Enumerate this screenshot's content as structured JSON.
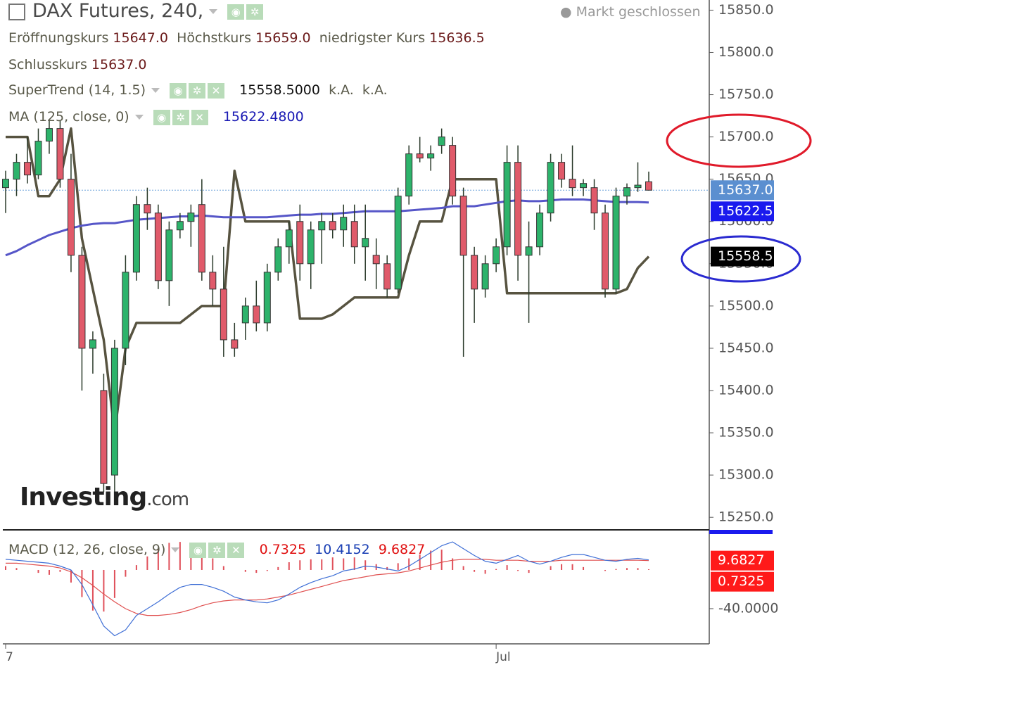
{
  "chart_data": [
    {
      "type": "candlestick",
      "title": "DAX Futures, 240,",
      "status": "Markt geschlossen",
      "ohlc": [
        {
          "label": "Eröffnungskurs",
          "value": "15647.0"
        },
        {
          "label": "Höchstkurs",
          "value": "15659.0"
        },
        {
          "label": "niedrigster Kurs",
          "value": "15636.5"
        },
        {
          "label": "Schlusskurs",
          "value": "15637.0"
        }
      ],
      "watermark": [
        "Investing",
        ".com"
      ],
      "categories": [
        "7",
        null,
        null,
        null,
        null,
        null,
        null,
        null,
        null,
        null,
        null,
        null,
        null,
        null,
        null,
        null,
        null,
        null,
        null,
        null,
        null,
        null,
        null,
        null,
        null,
        null,
        null,
        null,
        null,
        null,
        null,
        null,
        null,
        null,
        null,
        null,
        null,
        null,
        null,
        null,
        null,
        null,
        null,
        null,
        null,
        "Jul",
        null,
        null,
        null,
        null,
        null,
        null,
        null,
        null,
        null,
        null,
        null,
        null,
        null,
        null
      ],
      "up_color": "#2db36b",
      "down_color": "#e05a6a",
      "open": [
        15640,
        15650,
        15670,
        15655,
        15695,
        15710,
        15650,
        15560,
        15450,
        15400,
        15300,
        15450,
        15540,
        15620,
        15610,
        15530,
        15590,
        15600,
        15620,
        15540,
        15520,
        15460,
        15480,
        15500,
        15480,
        15540,
        15570,
        15600,
        15550,
        15590,
        15600,
        15590,
        15600,
        15570,
        15560,
        15550,
        15520,
        15630,
        15680,
        15675,
        15690,
        15690,
        15630,
        15560,
        15520,
        15550,
        15570,
        15670,
        15560,
        15570,
        15610,
        15670,
        15650,
        15640,
        15640,
        15610,
        15520,
        15630,
        15640,
        15647
      ],
      "high": [
        15660,
        15680,
        15700,
        15710,
        15720,
        15720,
        15680,
        15570,
        15470,
        15420,
        15460,
        15560,
        15630,
        15640,
        15620,
        15600,
        15610,
        15620,
        15650,
        15560,
        15570,
        15480,
        15510,
        15530,
        15550,
        15580,
        15600,
        15620,
        15600,
        15610,
        15610,
        15620,
        15620,
        15620,
        15580,
        15560,
        15640,
        15690,
        15700,
        15690,
        15710,
        15700,
        15640,
        15570,
        15560,
        15580,
        15690,
        15690,
        15600,
        15620,
        15680,
        15680,
        15690,
        15650,
        15650,
        15620,
        15640,
        15645,
        15670,
        15659
      ],
      "low": [
        15610,
        15630,
        15645,
        15650,
        15680,
        15640,
        15540,
        15400,
        15420,
        15280,
        15280,
        15430,
        15530,
        15590,
        15520,
        15500,
        15580,
        15570,
        15530,
        15500,
        15440,
        15440,
        15460,
        15470,
        15470,
        15530,
        15550,
        15530,
        15520,
        15550,
        15580,
        15570,
        15550,
        15530,
        15520,
        15510,
        15515,
        15620,
        15670,
        15660,
        15680,
        15620,
        15440,
        15480,
        15510,
        15540,
        15560,
        15530,
        15480,
        15560,
        15600,
        15640,
        15630,
        15630,
        15590,
        15510,
        15515,
        15620,
        15635,
        15636.5
      ],
      "close": [
        15650,
        15670,
        15655,
        15695,
        15710,
        15650,
        15560,
        15450,
        15460,
        15290,
        15450,
        15540,
        15620,
        15610,
        15530,
        15590,
        15600,
        15610,
        15540,
        15520,
        15460,
        15450,
        15500,
        15480,
        15540,
        15570,
        15590,
        15550,
        15590,
        15600,
        15590,
        15605,
        15570,
        15580,
        15550,
        15520,
        15630,
        15680,
        15675,
        15680,
        15700,
        15630,
        15560,
        15520,
        15550,
        15570,
        15670,
        15560,
        15570,
        15610,
        15670,
        15650,
        15640,
        15645,
        15610,
        15520,
        15630,
        15640,
        15643,
        15637
      ],
      "lines": [
        {
          "name": "SuperTrend (14, 1.5)",
          "color": "#575340",
          "last": "15558.5000",
          "extra": [
            "k.A.",
            "k.A."
          ],
          "values": [
            15700,
            15700,
            15700,
            15630,
            15630,
            15650,
            15710,
            15580,
            15520,
            15460,
            15350,
            15450,
            15480,
            15480,
            15480,
            15480,
            15480,
            15490,
            15500,
            15500,
            15500,
            15660,
            15600,
            15600,
            15600,
            15600,
            15600,
            15485,
            15485,
            15485,
            15490,
            15500,
            15510,
            15510,
            15510,
            15510,
            15510,
            15560,
            15600,
            15600,
            15600,
            15650,
            15650,
            15650,
            15650,
            15650,
            15515,
            15515,
            15515,
            15515,
            15515,
            15515,
            15515,
            15515,
            15515,
            15515,
            15515,
            15520,
            15545,
            15558.5
          ]
        },
        {
          "name": "MA (125, close, 0)",
          "color": "#5656c8",
          "last": "15622.4800",
          "values": [
            15560,
            15565,
            15572,
            15578,
            15584,
            15588,
            15592,
            15595,
            15597,
            15598,
            15598,
            15600,
            15602,
            15603,
            15604,
            15605,
            15606,
            15606,
            15607,
            15606,
            15605,
            15605,
            15605,
            15605,
            15605,
            15606,
            15607,
            15608,
            15608,
            15609,
            15609,
            15610,
            15611,
            15612,
            15612,
            15612,
            15612,
            15613,
            15614,
            15615,
            15616,
            15618,
            15618,
            15618,
            15620,
            15622,
            15624,
            15625,
            15624,
            15624,
            15625,
            15626,
            15626,
            15626,
            15625,
            15624,
            15623,
            15623,
            15623,
            15622.5
          ]
        }
      ],
      "markers": [
        {
          "value": 15637,
          "label": "15637.0",
          "color": "#5b8fd0"
        },
        {
          "value": 15622.5,
          "label": "15622.5",
          "color": "#1a1aee"
        },
        {
          "value": 15558.5,
          "label": "15558.5",
          "color": "#000000"
        }
      ],
      "ylim": [
        15236,
        15862
      ],
      "yticks": [
        {
          "value": 15250,
          "label": "15250.0"
        },
        {
          "value": 15300,
          "label": "15300.0"
        },
        {
          "value": 15350,
          "label": "15350.0"
        },
        {
          "value": 15400,
          "label": "15400.0"
        },
        {
          "value": 15450,
          "label": "15450.0"
        },
        {
          "value": 15500,
          "label": "15500.0"
        },
        {
          "value": 15550,
          "label": "15550.0"
        },
        {
          "value": 15600,
          "label": "15600.0"
        },
        {
          "value": 15650,
          "label": "15650.0"
        },
        {
          "value": 15700,
          "label": "15700.0"
        },
        {
          "value": 15750,
          "label": "15750.0"
        },
        {
          "value": 15800,
          "label": "15800.0"
        },
        {
          "value": 15850,
          "label": "15850.0"
        }
      ]
    },
    {
      "type": "macd",
      "name": "MACD (12, 26, close, 9)",
      "histogram": {
        "color": "#e0505a",
        "last": "0.7325",
        "values": [
          4,
          2,
          0,
          -3,
          -5,
          -2,
          -13,
          -28,
          -42,
          -43,
          -29,
          -7,
          5,
          14,
          22,
          28,
          29,
          26,
          19,
          12,
          4,
          0,
          -2,
          -3,
          -1,
          3,
          8,
          10,
          11,
          11,
          13,
          12,
          13,
          10,
          6,
          3,
          7,
          12,
          16,
          20,
          21,
          12,
          4,
          -2,
          -4,
          1,
          5,
          -1,
          -3,
          0,
          4,
          6,
          6,
          3,
          0,
          -1,
          1,
          2,
          2,
          0.7325
        ]
      },
      "macd": {
        "color": "#3f6fd6",
        "last": "10.4152",
        "values": [
          11,
          10,
          9,
          8,
          7,
          4,
          0,
          -15,
          -36,
          -58,
          -68,
          -62,
          -47,
          -40,
          -33,
          -25,
          -18,
          -15,
          -15,
          -18,
          -22,
          -28,
          -31,
          -33,
          -34,
          -31,
          -25,
          -18,
          -13,
          -9,
          -6,
          -1,
          1,
          4,
          3,
          1,
          -1,
          4,
          11,
          18,
          25,
          29,
          22,
          15,
          9,
          7,
          11,
          15,
          9,
          6,
          9,
          13,
          16,
          16,
          13,
          10,
          9,
          11,
          12,
          10.4152
        ]
      },
      "signal": {
        "color": "#e05050",
        "last": "9.6827",
        "values": [
          7,
          7,
          6,
          5,
          4,
          2,
          -2,
          -8,
          -16,
          -25,
          -33,
          -40,
          -45,
          -47,
          -47,
          -46,
          -44,
          -41,
          -37,
          -34,
          -32,
          -31,
          -31,
          -31,
          -30,
          -28,
          -26,
          -23,
          -20,
          -17,
          -14,
          -11,
          -9,
          -7,
          -5,
          -4,
          -3,
          -1,
          2,
          5,
          8,
          10,
          11,
          11,
          11,
          10,
          10,
          10,
          9,
          9,
          9,
          10,
          10,
          10,
          10,
          10,
          10,
          10,
          10,
          9.6827
        ]
      },
      "markers": [
        {
          "value": 9.6827,
          "label": "9.6827",
          "color": "#ff1a1a"
        },
        {
          "value": 0.7325,
          "label": "0.7325",
          "color": "#ff1a1a"
        }
      ],
      "ylim": [
        -76.4,
        40
      ],
      "yticks": [
        {
          "value": -40,
          "label": "-40.0000"
        }
      ]
    }
  ]
}
